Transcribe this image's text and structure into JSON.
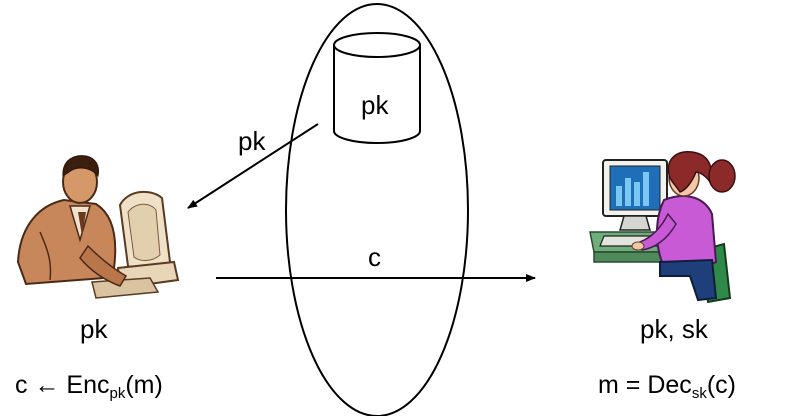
{
  "server": {
    "database_label": "pk"
  },
  "arrows": {
    "pk_arrow_label": "pk",
    "ciphertext_label": "c"
  },
  "sender": {
    "icon": "businessman-at-computer-icon",
    "key_label": "pk",
    "formula": {
      "lhs": "c",
      "arrow": "←",
      "op": "Enc",
      "sub": "pk",
      "arg": "(m)"
    }
  },
  "receiver": {
    "icon": "woman-at-computer-icon",
    "key_label": "pk, sk",
    "formula": {
      "lhs": "m",
      "eq": "=",
      "op": "Dec",
      "sub": "sk",
      "arg": "(c)"
    }
  },
  "colors": {
    "ink": "#000000",
    "sender_skin": "#c8875a",
    "receiver_shirt": "#c85ad6",
    "receiver_hair": "#8c2a2a",
    "chart_blue": "#2e8fd6",
    "desk_green": "#6fae7a"
  }
}
